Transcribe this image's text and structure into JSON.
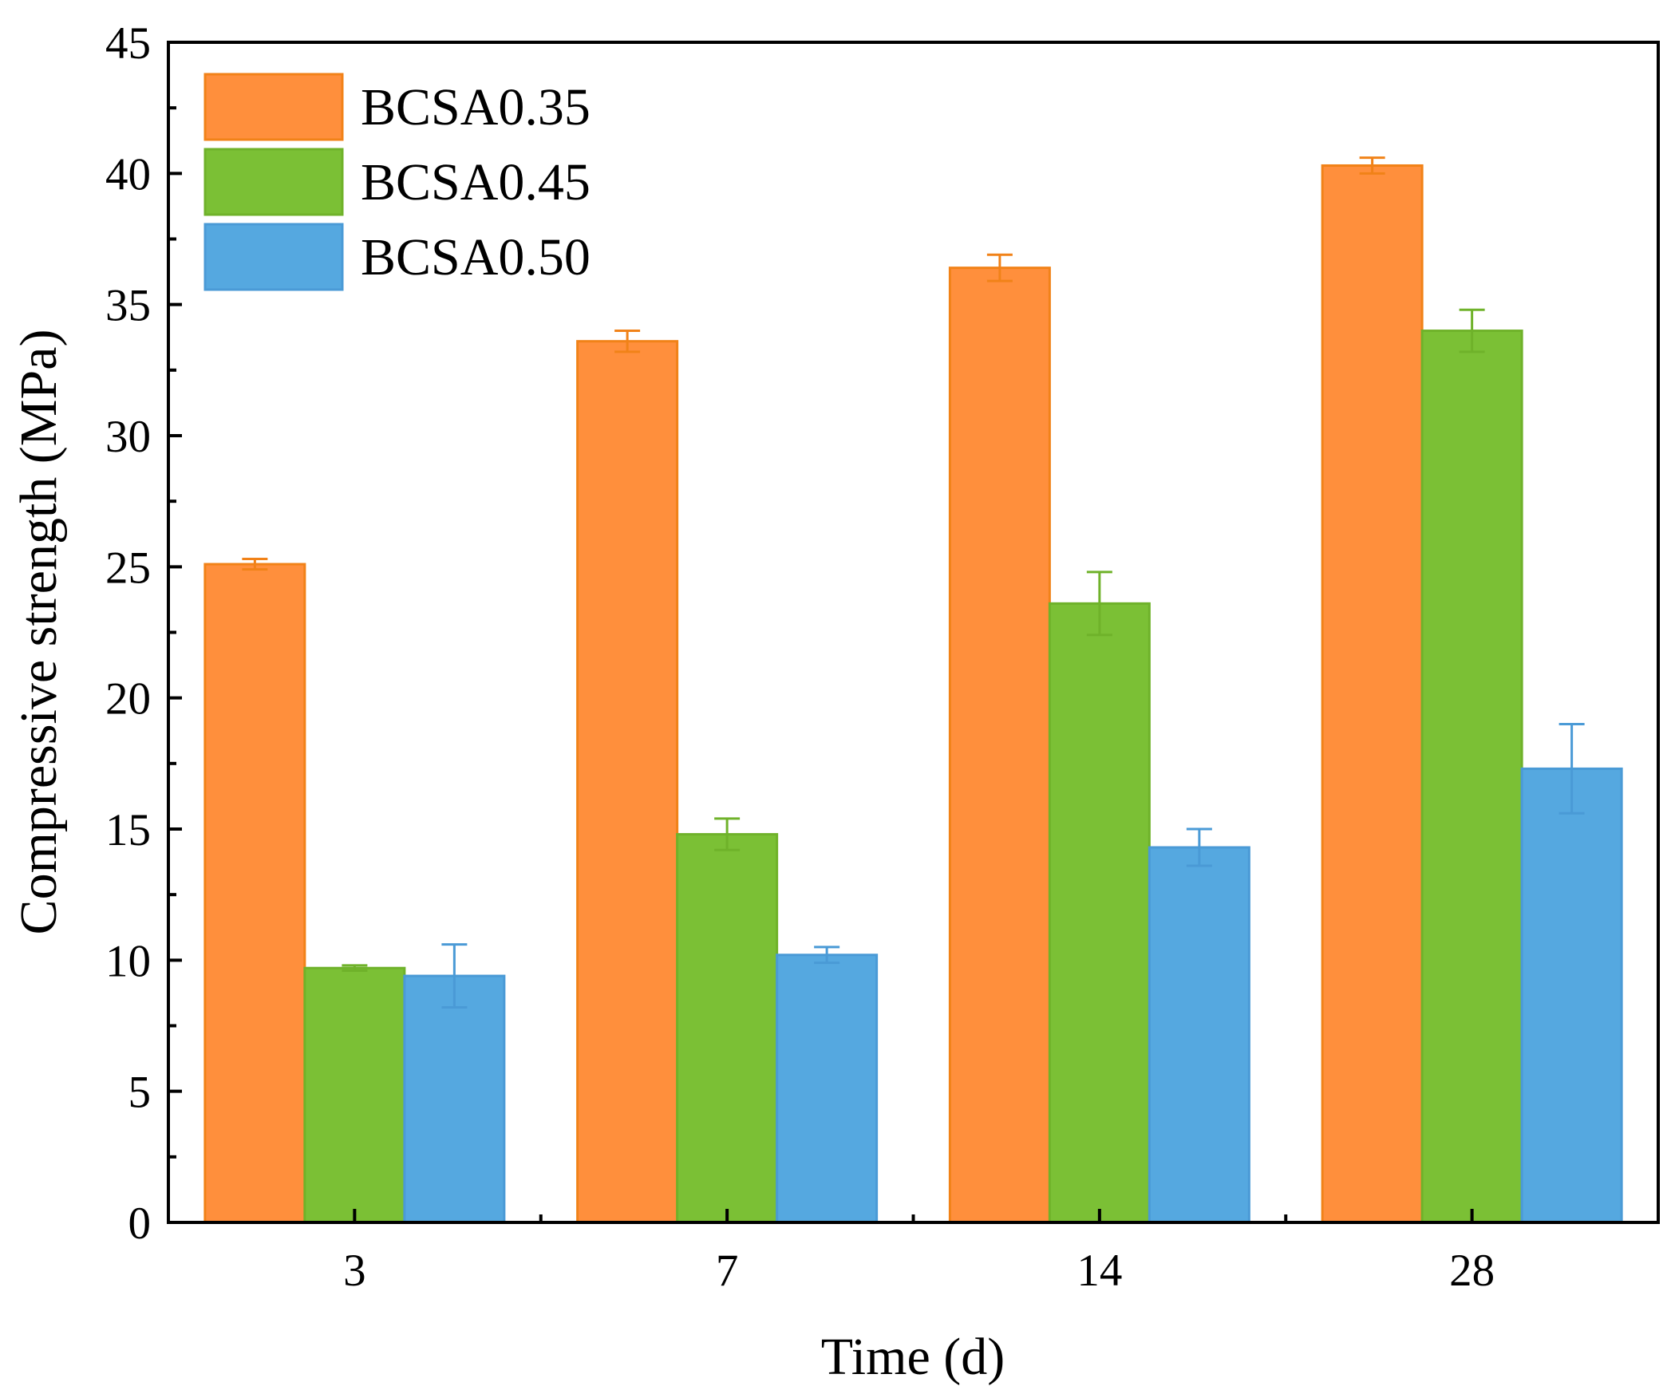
{
  "chart_data": {
    "type": "bar",
    "title": "",
    "xlabel": "Time (d)",
    "ylabel": "Compressive strength (MPa)",
    "categories": [
      "3",
      "7",
      "14",
      "28"
    ],
    "ylim": [
      0,
      45
    ],
    "yticks": [
      "0",
      "5",
      "10",
      "15",
      "20",
      "25",
      "30",
      "35",
      "40",
      "45"
    ],
    "grid": false,
    "legend_position": "top-left",
    "series": [
      {
        "name": "BCSA0.35",
        "color": "#FF8F3C",
        "edge_color": "#F18218",
        "values": [
          25.1,
          33.6,
          36.4,
          40.3
        ],
        "errors": [
          0.2,
          0.4,
          0.5,
          0.3
        ]
      },
      {
        "name": "BCSA0.45",
        "color": "#7BC035",
        "edge_color": "#6FB22A",
        "values": [
          9.7,
          14.8,
          23.6,
          34.0
        ],
        "errors": [
          0.1,
          0.6,
          1.2,
          0.8
        ]
      },
      {
        "name": "BCSA0.50",
        "color": "#55A8E0",
        "edge_color": "#4A9AD6",
        "values": [
          9.4,
          10.2,
          14.3,
          17.3
        ],
        "errors": [
          1.2,
          0.3,
          0.7,
          1.7
        ]
      }
    ]
  }
}
